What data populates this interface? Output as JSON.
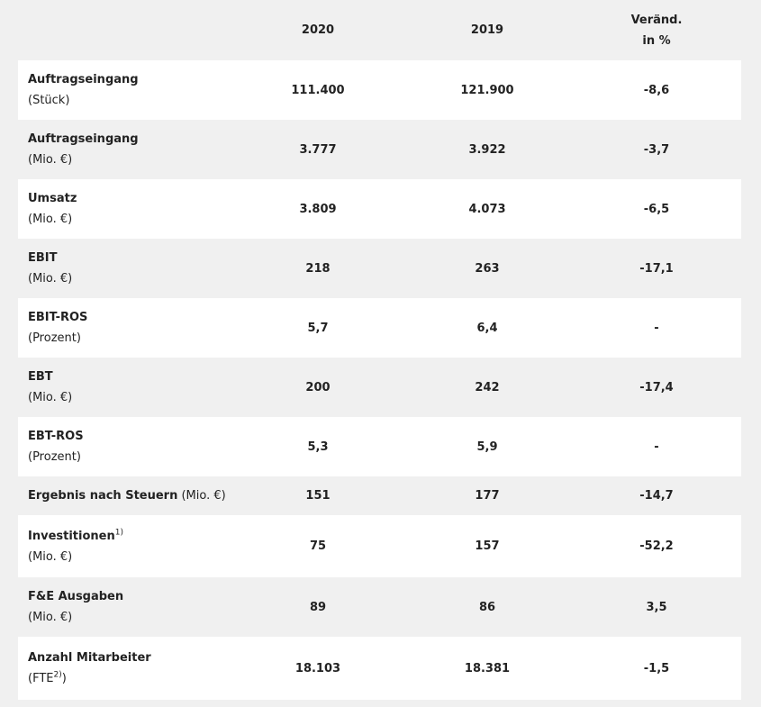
{
  "table": {
    "header": [
      "2020",
      "2019",
      "Veränd.",
      "in %"
    ],
    "rows": [
      {
        "label": "Auftragseingang",
        "unit": "(Stück)",
        "values": [
          "111.400",
          "121.900",
          "-8,6"
        ]
      },
      {
        "label": "Auftragseingang",
        "unit": "(Mio. €)",
        "values": [
          "3.777",
          "3.922",
          "-3,7"
        ]
      },
      {
        "label": "Umsatz",
        "unit": "(Mio. €)",
        "values": [
          "3.809",
          "4.073",
          "-6,5"
        ]
      },
      {
        "label": "EBIT",
        "unit": "(Mio. €)",
        "values": [
          "218",
          "263",
          "-17,1"
        ]
      },
      {
        "label": "EBIT-ROS",
        "unit": "(Prozent)",
        "values": [
          "5,7",
          "6,4",
          "-"
        ]
      },
      {
        "label": "EBT",
        "unit": "(Mio. €)",
        "values": [
          "200",
          "242",
          "-17,4"
        ]
      },
      {
        "label": "EBT-ROS",
        "unit": "(Prozent)",
        "values": [
          "5,3",
          "5,9",
          "-"
        ]
      },
      {
        "label": "Ergebnis nach Steuern",
        "unit": "(Mio. €)",
        "values": [
          "151",
          "177",
          "-14,7"
        ]
      },
      {
        "label": "Investitionen",
        "label_note": "1)",
        "unit": "(Mio. €)",
        "values": [
          "75",
          "157",
          "-52,2"
        ]
      },
      {
        "label": "F&E Ausgaben",
        "unit": "(Mio. €)",
        "values": [
          "89",
          "86",
          "3,5"
        ]
      },
      {
        "label": "Anzahl Mitarbeiter",
        "unit": "(FTE",
        "unit_note": "2)",
        "unit_close": ")",
        "values": [
          "18.103",
          "18.381",
          "-1,5"
        ]
      }
    ]
  }
}
